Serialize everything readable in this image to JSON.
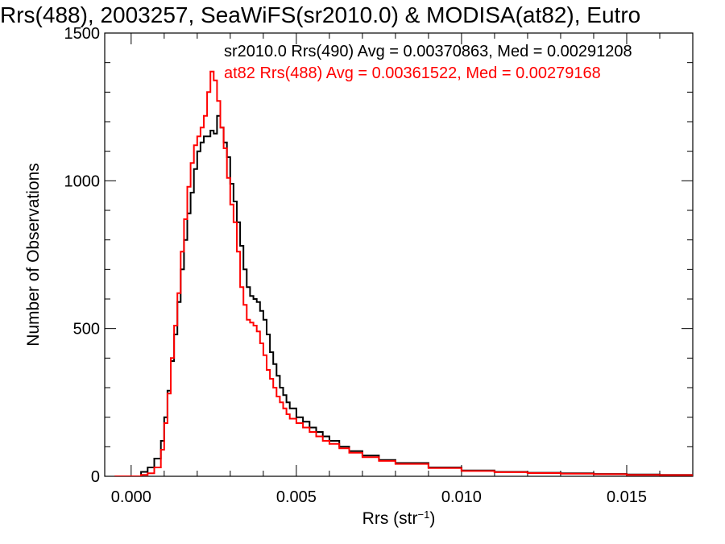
{
  "chart_data": {
    "type": "line",
    "step": true,
    "title": "Rrs(488), 2003257, SeaWiFS(sr2010.0) & MODISA(at82), Eutro",
    "xlabel": "Rrs (str",
    "xlabel_sup": "−1",
    "xlabel_tail": ")",
    "ylabel": "Number of Observations",
    "xlim": [
      -0.0008,
      0.017
    ],
    "ylim": [
      0,
      1500
    ],
    "xticks": [
      0.0,
      0.005,
      0.01,
      0.015
    ],
    "xtick_labels": [
      "0.000",
      "0.005",
      "0.010",
      "0.015"
    ],
    "yticks": [
      0,
      500,
      1000,
      1500
    ],
    "ytick_labels": [
      "0",
      "500",
      "1000",
      "1500"
    ],
    "grid": false,
    "legend_position": "top-right",
    "series": [
      {
        "name": "sr2010.0 Rrs(490) Avg = 0.00370863, Med = 0.00291208",
        "color": "#000000",
        "x": [
          -0.0005,
          0.0,
          0.0003,
          0.0005,
          0.0007,
          0.0009,
          0.001,
          0.0011,
          0.0012,
          0.0013,
          0.0014,
          0.0015,
          0.0016,
          0.0017,
          0.0018,
          0.0019,
          0.002,
          0.0021,
          0.0022,
          0.0023,
          0.0024,
          0.0025,
          0.0026,
          0.0027,
          0.0028,
          0.0029,
          0.003,
          0.0031,
          0.0032,
          0.0033,
          0.0034,
          0.0035,
          0.0036,
          0.0037,
          0.0038,
          0.0039,
          0.004,
          0.0041,
          0.0042,
          0.0043,
          0.0044,
          0.0045,
          0.0046,
          0.0047,
          0.0048,
          0.005,
          0.0052,
          0.0054,
          0.0056,
          0.0058,
          0.006,
          0.0063,
          0.0066,
          0.007,
          0.0075,
          0.008,
          0.009,
          0.01,
          0.011,
          0.012,
          0.013,
          0.014,
          0.015,
          0.016,
          0.017
        ],
        "y": [
          0,
          0,
          15,
          30,
          60,
          120,
          200,
          290,
          390,
          480,
          590,
          700,
          800,
          890,
          960,
          1040,
          1100,
          1130,
          1150,
          1150,
          1170,
          1160,
          1220,
          1180,
          1130,
          1080,
          990,
          930,
          860,
          780,
          700,
          640,
          610,
          600,
          590,
          560,
          530,
          480,
          420,
          380,
          340,
          300,
          275,
          250,
          230,
          200,
          185,
          165,
          150,
          135,
          120,
          100,
          85,
          70,
          55,
          45,
          30,
          20,
          15,
          12,
          10,
          8,
          6,
          5,
          4
        ]
      },
      {
        "name": "at82 Rrs(488) Avg = 0.00361522, Med = 0.00279168",
        "color": "#ff0000",
        "x": [
          -0.0005,
          0.0,
          0.0003,
          0.0005,
          0.0007,
          0.0009,
          0.001,
          0.0011,
          0.0012,
          0.0013,
          0.0014,
          0.0015,
          0.0016,
          0.0017,
          0.0018,
          0.0019,
          0.002,
          0.0021,
          0.0022,
          0.0023,
          0.0024,
          0.0025,
          0.0026,
          0.0027,
          0.0028,
          0.0029,
          0.003,
          0.0031,
          0.0032,
          0.0033,
          0.0034,
          0.0035,
          0.0036,
          0.0037,
          0.0038,
          0.0039,
          0.004,
          0.0041,
          0.0042,
          0.0043,
          0.0044,
          0.0045,
          0.0046,
          0.0047,
          0.0048,
          0.005,
          0.0052,
          0.0054,
          0.0056,
          0.0058,
          0.006,
          0.0063,
          0.0066,
          0.007,
          0.0075,
          0.008,
          0.009,
          0.01,
          0.011,
          0.012,
          0.013,
          0.014,
          0.015,
          0.016,
          0.017
        ],
        "y": [
          0,
          0,
          5,
          10,
          30,
          90,
          180,
          280,
          400,
          510,
          620,
          760,
          870,
          980,
          1060,
          1120,
          1150,
          1180,
          1220,
          1300,
          1370,
          1340,
          1270,
          1180,
          1110,
          1010,
          920,
          860,
          760,
          640,
          580,
          530,
          520,
          510,
          490,
          450,
          410,
          360,
          330,
          300,
          270,
          250,
          230,
          210,
          195,
          180,
          165,
          150,
          135,
          120,
          110,
          95,
          80,
          65,
          52,
          42,
          28,
          18,
          14,
          11,
          9,
          7,
          5,
          4,
          3
        ]
      }
    ]
  }
}
